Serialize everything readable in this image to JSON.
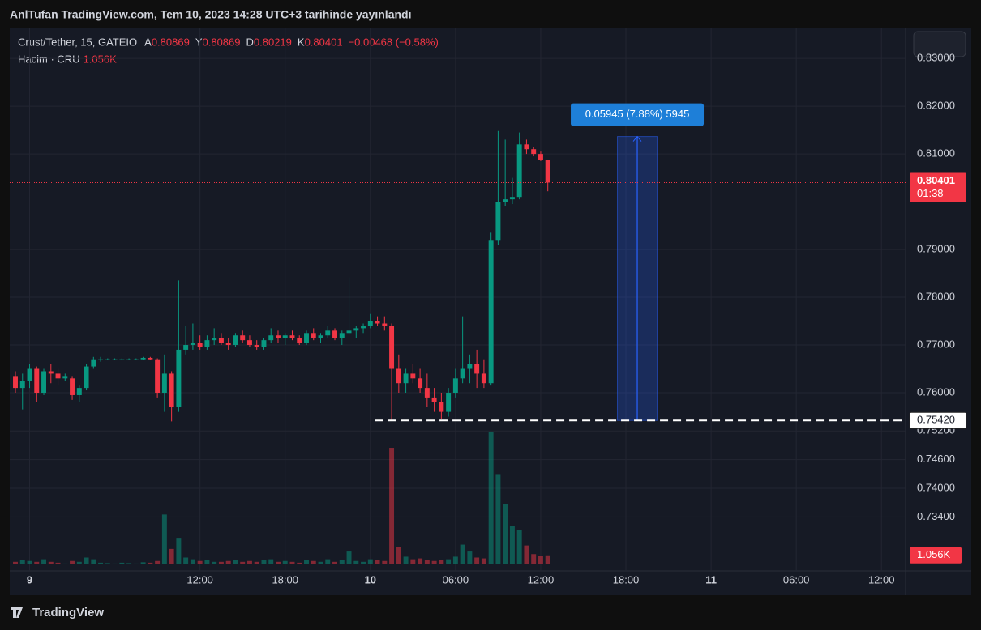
{
  "header": {
    "published": "AnlTufan TradingView.com, Tem 10, 2023 14:28 UTC+3 tarihinde yayınlandı",
    "symbol": "Crust/Tether, 15, GATEIO",
    "open_label": "A",
    "open": "0.80869",
    "high_label": "Y",
    "high": "0.80869",
    "low_label": "D",
    "low": "0.80219",
    "close_label": "K",
    "close": "0.80401",
    "change": "−0.00468 (−0.58%)",
    "volume_label": "Hacim · CRU",
    "volume": "1.056K",
    "countdown": "01:38",
    "brand": "TradingView"
  },
  "chart_data": {
    "type": "candlestick",
    "up_color": "#089981",
    "down_color": "#f23645",
    "x": [
      -1,
      -0.5,
      0,
      0.5,
      1,
      1.5,
      2,
      2.5,
      3,
      3.5,
      4,
      4.5,
      5,
      5.5,
      6,
      6.5,
      7,
      7.5,
      8,
      8.5,
      9,
      9.5,
      10,
      10.5,
      11,
      11.5,
      12,
      12.5,
      13,
      13.5,
      14,
      14.5,
      15,
      15.5,
      16,
      16.5,
      17,
      17.5,
      18,
      18.5,
      19,
      19.5,
      20,
      20.5,
      21,
      21.5,
      22,
      22.5,
      23,
      23.5,
      24,
      24.5,
      25,
      25.5,
      26,
      26.5,
      27,
      27.5,
      28,
      28.5,
      29,
      29.5,
      30,
      30.5,
      31,
      31.5,
      32,
      32.5,
      33,
      33.5,
      34,
      34.5,
      35,
      35.5,
      36,
      36.5
    ],
    "open": [
      0.7635,
      0.761,
      0.7625,
      0.765,
      0.76,
      0.7645,
      0.764,
      0.763,
      0.763,
      0.7595,
      0.761,
      0.7655,
      0.767,
      0.767,
      0.767,
      0.767,
      0.767,
      0.767,
      0.767,
      0.7673,
      0.767,
      0.76,
      0.764,
      0.757,
      0.769,
      0.77,
      0.7705,
      0.7695,
      0.771,
      0.7715,
      0.7705,
      0.77,
      0.772,
      0.771,
      0.77,
      0.7695,
      0.771,
      0.772,
      0.7715,
      0.772,
      0.7715,
      0.7705,
      0.7725,
      0.7715,
      0.772,
      0.773,
      0.7715,
      0.7725,
      0.773,
      0.7735,
      0.774,
      0.775,
      0.7745,
      0.774,
      0.765,
      0.762,
      0.764,
      0.763,
      0.761,
      0.759,
      0.758,
      0.756,
      0.76,
      0.763,
      0.765,
      0.766,
      0.764,
      0.762,
      0.792,
      0.8,
      0.8005,
      0.801,
      0.812,
      0.811,
      0.81,
      0.80869
    ],
    "high": [
      0.7645,
      0.764,
      0.766,
      0.7655,
      0.765,
      0.766,
      0.765,
      0.764,
      0.7635,
      0.7615,
      0.766,
      0.7675,
      0.7675,
      0.7672,
      0.7672,
      0.7672,
      0.7672,
      0.7672,
      0.7675,
      0.7675,
      0.7672,
      0.768,
      0.7645,
      0.7835,
      0.774,
      0.7745,
      0.772,
      0.772,
      0.7735,
      0.7725,
      0.7715,
      0.7725,
      0.773,
      0.772,
      0.771,
      0.7715,
      0.7735,
      0.773,
      0.7725,
      0.773,
      0.772,
      0.773,
      0.7735,
      0.7725,
      0.774,
      0.7735,
      0.773,
      0.7842,
      0.774,
      0.7745,
      0.7765,
      0.776,
      0.776,
      0.7745,
      0.768,
      0.765,
      0.766,
      0.765,
      0.764,
      0.761,
      0.76,
      0.761,
      0.765,
      0.776,
      0.768,
      0.769,
      0.767,
      0.7935,
      0.8148,
      0.813,
      0.805,
      0.8145,
      0.813,
      0.8115,
      0.8105,
      0.80869
    ],
    "low": [
      0.76,
      0.7565,
      0.761,
      0.758,
      0.7595,
      0.762,
      0.7615,
      0.7625,
      0.7585,
      0.758,
      0.7605,
      0.765,
      0.7665,
      0.7668,
      0.7668,
      0.7668,
      0.7668,
      0.7668,
      0.7668,
      0.7668,
      0.759,
      0.756,
      0.754,
      0.756,
      0.768,
      0.769,
      0.769,
      0.769,
      0.77,
      0.77,
      0.769,
      0.7695,
      0.7705,
      0.7695,
      0.769,
      0.769,
      0.7705,
      0.7705,
      0.77,
      0.771,
      0.77,
      0.77,
      0.771,
      0.7705,
      0.7715,
      0.771,
      0.77,
      0.772,
      0.7715,
      0.7725,
      0.7735,
      0.774,
      0.773,
      0.7542,
      0.76,
      0.76,
      0.762,
      0.76,
      0.757,
      0.756,
      0.7545,
      0.755,
      0.759,
      0.762,
      0.762,
      0.761,
      0.761,
      0.7615,
      0.791,
      0.799,
      0.7995,
      0.8005,
      0.81,
      0.8095,
      0.8085,
      0.80219
    ],
    "close": [
      0.761,
      0.7625,
      0.765,
      0.76,
      0.7645,
      0.764,
      0.763,
      0.7635,
      0.7595,
      0.761,
      0.7655,
      0.767,
      0.767,
      0.767,
      0.767,
      0.767,
      0.767,
      0.767,
      0.7673,
      0.767,
      0.76,
      0.764,
      0.757,
      0.769,
      0.77,
      0.7705,
      0.7695,
      0.771,
      0.7715,
      0.7705,
      0.77,
      0.772,
      0.771,
      0.77,
      0.7695,
      0.771,
      0.772,
      0.7715,
      0.772,
      0.7715,
      0.7705,
      0.7725,
      0.7715,
      0.772,
      0.773,
      0.7715,
      0.7725,
      0.773,
      0.7735,
      0.774,
      0.775,
      0.7745,
      0.774,
      0.765,
      0.762,
      0.764,
      0.763,
      0.761,
      0.759,
      0.758,
      0.756,
      0.76,
      0.763,
      0.765,
      0.766,
      0.764,
      0.762,
      0.792,
      0.8,
      0.8005,
      0.801,
      0.812,
      0.811,
      0.81,
      0.8087,
      0.80401
    ],
    "volume": [
      300,
      500,
      400,
      300,
      600,
      300,
      200,
      100,
      400,
      300,
      800,
      600,
      200,
      150,
      100,
      200,
      150,
      100,
      250,
      200,
      400,
      5800,
      1800,
      3000,
      800,
      600,
      400,
      500,
      300,
      300,
      400,
      500,
      300,
      400,
      300,
      500,
      600,
      300,
      400,
      300,
      200,
      500,
      400,
      300,
      600,
      300,
      500,
      1500,
      400,
      300,
      600,
      500,
      400,
      13550,
      2000,
      900,
      600,
      700,
      500,
      400,
      500,
      600,
      900,
      2300,
      1500,
      800,
      700,
      15440,
      10500,
      7000,
      4500,
      4000,
      2200,
      1200,
      1000,
      1056
    ],
    "ylim": [
      0.7227,
      0.8363
    ],
    "yticks": [
      {
        "value": 0.83,
        "label": "0.83000"
      },
      {
        "value": 0.82,
        "label": "0.82000"
      },
      {
        "value": 0.81,
        "label": "0.81000"
      },
      {
        "value": 0.79,
        "label": "0.79000"
      },
      {
        "value": 0.78,
        "label": "0.78000"
      },
      {
        "value": 0.77,
        "label": "0.77000"
      },
      {
        "value": 0.76,
        "label": "0.76000"
      },
      {
        "value": 0.752,
        "label": "0.75200"
      },
      {
        "value": 0.746,
        "label": "0.74600"
      },
      {
        "value": 0.74,
        "label": "0.74000"
      },
      {
        "value": 0.734,
        "label": "0.73400"
      }
    ],
    "xlim": [
      -1.4,
      61.7
    ],
    "xticks": [
      {
        "value": 0,
        "label": "9"
      },
      {
        "value": 12,
        "label": "12:00"
      },
      {
        "value": 18,
        "label": "18:00"
      },
      {
        "value": 24,
        "label": "10"
      },
      {
        "value": 30,
        "label": "06:00"
      },
      {
        "value": 36,
        "label": "12:00"
      },
      {
        "value": 42,
        "label": "18:00"
      },
      {
        "value": 48,
        "label": "11"
      },
      {
        "value": 54,
        "label": "06:00"
      },
      {
        "value": 60,
        "label": "12:00"
      }
    ],
    "vlim": [
      0,
      16000
    ],
    "last_price": {
      "value": 0.80401,
      "label": "0.80401"
    },
    "support": {
      "value": 0.7542,
      "label": "0.75420",
      "x_from": 24.3
    },
    "measure": {
      "from": 0.7542,
      "to": 0.81365,
      "x_from": 41.4,
      "x_to": 44.2,
      "label": "0.05945 (7.88%) 5945"
    },
    "grid": true
  }
}
